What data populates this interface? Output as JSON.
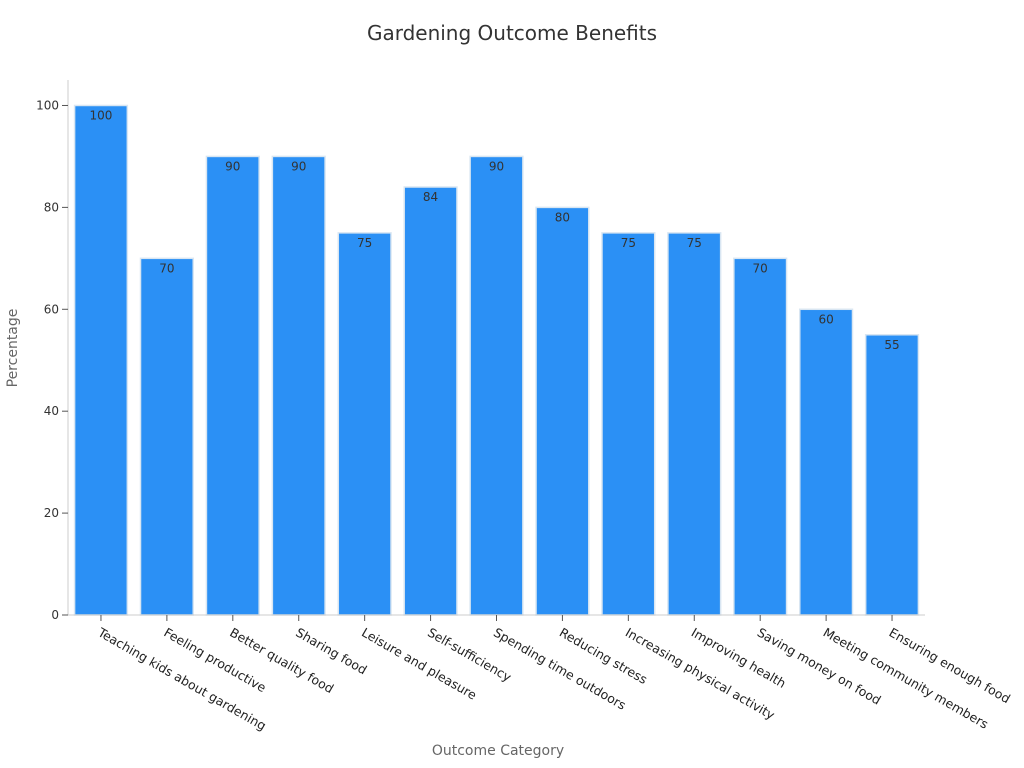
{
  "chart_data": {
    "type": "bar",
    "title": "Gardening Outcome Benefits",
    "xlabel": "Outcome Category",
    "ylabel": "Percentage",
    "ylim": [
      0,
      105
    ],
    "yticks": [
      0,
      20,
      40,
      60,
      80,
      100
    ],
    "bar_color": "#2b90f5",
    "categories": [
      "Teaching kids about gardening",
      "Feeling productive",
      "Better quality food",
      "Sharing food",
      "Leisure and pleasure",
      "Self-sufficiency",
      "Spending time outdoors",
      "Reducing stress",
      "Increasing physical activity",
      "Improving health",
      "Saving money on food",
      "Meeting community members",
      "Ensuring enough food"
    ],
    "values": [
      100,
      70,
      90,
      90,
      75,
      84,
      90,
      80,
      75,
      75,
      70,
      60,
      55
    ]
  }
}
